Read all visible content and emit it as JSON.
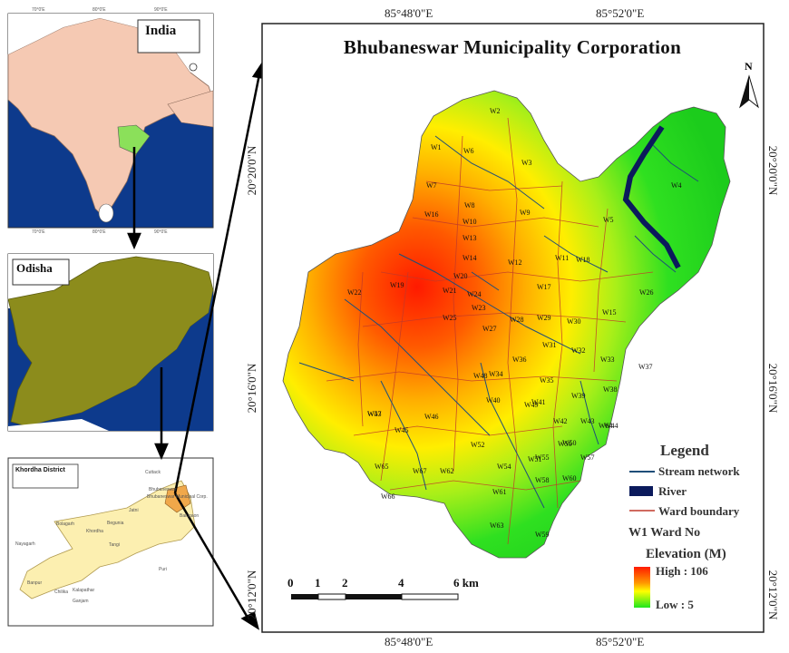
{
  "main_map": {
    "title": "Bhubaneswar Municipality Corporation",
    "top_coords": [
      "85°48'0\"E",
      "85°52'0\"E"
    ],
    "bottom_coords": [
      "85°48'0\"E",
      "85°52'0\"E"
    ],
    "left_coords": [
      "20°20'0\"N",
      "20°16'0\"N",
      "20°12'0\"N"
    ],
    "right_coords": [
      "20°20'0\"N",
      "20°16'0\"N",
      "20°12'0\"N"
    ],
    "north_label": "N",
    "wards": [
      "W2",
      "W1",
      "W6",
      "W3",
      "W7",
      "W8",
      "W4",
      "W9",
      "W5",
      "W10",
      "W13",
      "W11",
      "W14",
      "W12",
      "W18",
      "W22",
      "W19",
      "W20",
      "W21",
      "W17",
      "W24",
      "W23",
      "W16",
      "W25",
      "W28",
      "W29",
      "W30",
      "W15",
      "W26",
      "W27",
      "W31",
      "W36",
      "W32",
      "W33",
      "W35",
      "W34",
      "W37",
      "W38",
      "W39",
      "W40",
      "W41",
      "W42",
      "W43",
      "W44",
      "W45",
      "W46",
      "W47",
      "W48",
      "W49",
      "W50",
      "W51",
      "W52",
      "W53",
      "W54",
      "W55",
      "W56",
      "W57",
      "W58",
      "W59",
      "W60",
      "W61",
      "W62",
      "W63",
      "W64",
      "W65",
      "W66",
      "W67"
    ],
    "legend": {
      "title": "Legend",
      "items": [
        {
          "label": "Stream network",
          "color": "#1f4e79"
        },
        {
          "label": "River",
          "color": "#0b1a5c"
        },
        {
          "label": "Ward boundary",
          "color": "#c0392b"
        }
      ],
      "ward_no": "W1 Ward No",
      "elevation_title": "Elevation (M)",
      "high": "High : 106",
      "low": "Low : 5"
    },
    "scale": {
      "labels": [
        "0",
        "1",
        "2",
        "4",
        "6 km"
      ]
    }
  },
  "india_map": {
    "title": "India",
    "top_coords": [
      "70°0'E",
      "80°0'E",
      "90°0'E"
    ],
    "bottom_coords": [
      "70°0'E",
      "80°0'E",
      "90°0'E"
    ]
  },
  "odisha_map": {
    "title": "Odisha"
  },
  "khordha_map": {
    "title": "Khordha District",
    "places": [
      "Bhubaneswar",
      "Bhubaneswar Municipal Corp.",
      "Balugaon",
      "Tangi",
      "Khordha",
      "Begunia",
      "Bolagarh",
      "Jatni",
      "Chilika",
      "Banpur",
      "Nayagarh",
      "Ganjam",
      "Puri",
      "Cuttack",
      "Kalapathar"
    ]
  },
  "colors": {
    "elev_high": "#ff1a00",
    "elev_mid": "#ffff00",
    "elev_low": "#1ee61e",
    "india_land": "#f5c9b3",
    "odisha_land": "#8c8c1c",
    "khordha_land": "#fcefb0",
    "sea": "#0d3a8c"
  }
}
